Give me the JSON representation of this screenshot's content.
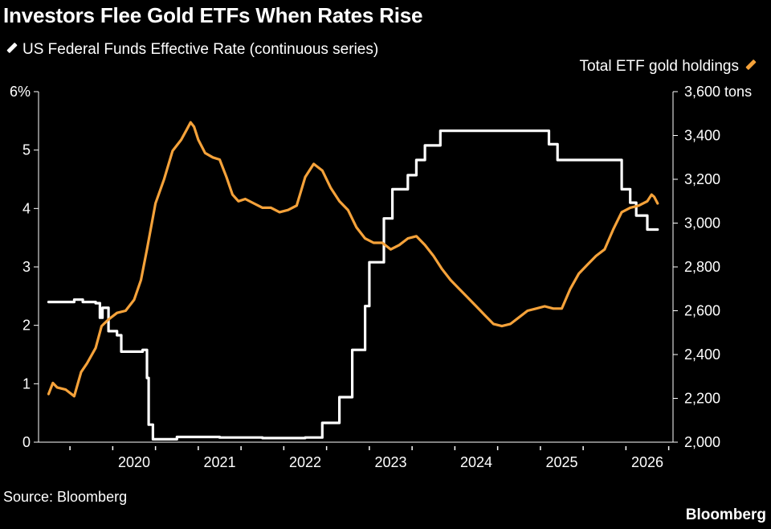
{
  "title": "Investors Flee Gold ETFs When Rates Rise",
  "legend": {
    "left_label": "US Federal Funds Effective Rate (continuous series)",
    "right_label": "Total ETF gold holdings"
  },
  "source": "Source: Bloomberg",
  "brand": "Bloomberg",
  "colors": {
    "rate": "#ffffff",
    "gold": "#f5a23a",
    "background": "#000000"
  },
  "chart_data": {
    "type": "line",
    "title": "Investors Flee Gold ETFs When Rates Rise",
    "x_range": [
      2019.0,
      2026.0
    ],
    "x_ticks": [
      "2020",
      "2021",
      "2022",
      "2023",
      "2024",
      "2025",
      "2026"
    ],
    "y_left": {
      "label": "%",
      "range": [
        0,
        6
      ],
      "ticks": [
        "0",
        "1",
        "2",
        "3",
        "4",
        "5",
        "6%"
      ]
    },
    "y_right": {
      "label": "tons",
      "range": [
        2000,
        3600
      ],
      "ticks": [
        "2,000",
        "2,200",
        "2,400",
        "2,600",
        "2,800",
        "3,000",
        "3,200",
        "3,400",
        "3,600 tons"
      ]
    },
    "series": [
      {
        "name": "US Federal Funds Effective Rate (continuous series)",
        "axis": "left",
        "step": true,
        "x": [
          2019.0,
          2019.25,
          2019.3,
          2019.4,
          2019.55,
          2019.6,
          2019.63,
          2019.7,
          2019.72,
          2019.8,
          2019.85,
          2019.9,
          2020.1,
          2020.15,
          2020.17,
          2020.22,
          2020.25,
          2020.5,
          2021.0,
          2021.5,
          2022.0,
          2022.2,
          2022.3,
          2022.4,
          2022.5,
          2022.55,
          2022.62,
          2022.7,
          2022.75,
          2022.85,
          2022.92,
          2023.02,
          2023.1,
          2023.2,
          2023.3,
          2023.4,
          2023.58,
          2024.73,
          2024.85,
          2024.95,
          2025.7,
          2025.8,
          2025.87,
          2026.0,
          2026.12
        ],
        "values": [
          2.4,
          2.4,
          2.44,
          2.4,
          2.38,
          2.13,
          2.3,
          1.9,
          1.9,
          1.83,
          1.55,
          1.55,
          1.58,
          1.1,
          0.3,
          0.05,
          0.05,
          0.09,
          0.08,
          0.07,
          0.08,
          0.33,
          0.33,
          0.77,
          0.77,
          1.58,
          1.58,
          2.33,
          3.08,
          3.08,
          3.83,
          4.33,
          4.33,
          4.57,
          4.83,
          5.08,
          5.33,
          5.33,
          5.1,
          4.83,
          4.33,
          4.1,
          3.88,
          3.64,
          3.64
        ]
      },
      {
        "name": "Total ETF gold holdings",
        "axis": "right",
        "x": [
          2019.0,
          2019.05,
          2019.1,
          2019.2,
          2019.3,
          2019.38,
          2019.45,
          2019.55,
          2019.62,
          2019.7,
          2019.8,
          2019.9,
          2020.0,
          2020.08,
          2020.15,
          2020.25,
          2020.35,
          2020.45,
          2020.55,
          2020.62,
          2020.66,
          2020.7,
          2020.75,
          2020.83,
          2020.92,
          2021.0,
          2021.08,
          2021.15,
          2021.22,
          2021.3,
          2021.4,
          2021.5,
          2021.6,
          2021.7,
          2021.8,
          2021.9,
          2022.0,
          2022.1,
          2022.2,
          2022.3,
          2022.4,
          2022.5,
          2022.6,
          2022.7,
          2022.8,
          2022.9,
          2023.0,
          2023.1,
          2023.2,
          2023.3,
          2023.4,
          2023.5,
          2023.6,
          2023.7,
          2023.8,
          2023.9,
          2024.0,
          2024.1,
          2024.2,
          2024.3,
          2024.4,
          2024.5,
          2024.6,
          2024.7,
          2024.8,
          2024.9,
          2025.0,
          2025.1,
          2025.2,
          2025.3,
          2025.4,
          2025.5,
          2025.6,
          2025.7,
          2025.8,
          2025.9,
          2026.0,
          2026.05,
          2026.08,
          2026.12
        ],
        "values": [
          2220,
          2270,
          2250,
          2240,
          2210,
          2320,
          2360,
          2430,
          2530,
          2560,
          2590,
          2600,
          2650,
          2740,
          2880,
          3090,
          3200,
          3330,
          3380,
          3430,
          3460,
          3440,
          3380,
          3320,
          3300,
          3290,
          3210,
          3130,
          3100,
          3110,
          3090,
          3070,
          3070,
          3050,
          3060,
          3080,
          3210,
          3270,
          3240,
          3160,
          3100,
          3060,
          2980,
          2930,
          2910,
          2910,
          2880,
          2900,
          2930,
          2940,
          2900,
          2850,
          2790,
          2740,
          2700,
          2660,
          2620,
          2580,
          2540,
          2530,
          2540,
          2570,
          2600,
          2610,
          2620,
          2610,
          2610,
          2700,
          2770,
          2810,
          2850,
          2880,
          2970,
          3050,
          3070,
          3080,
          3100,
          3130,
          3120,
          3090
        ]
      }
    ]
  }
}
